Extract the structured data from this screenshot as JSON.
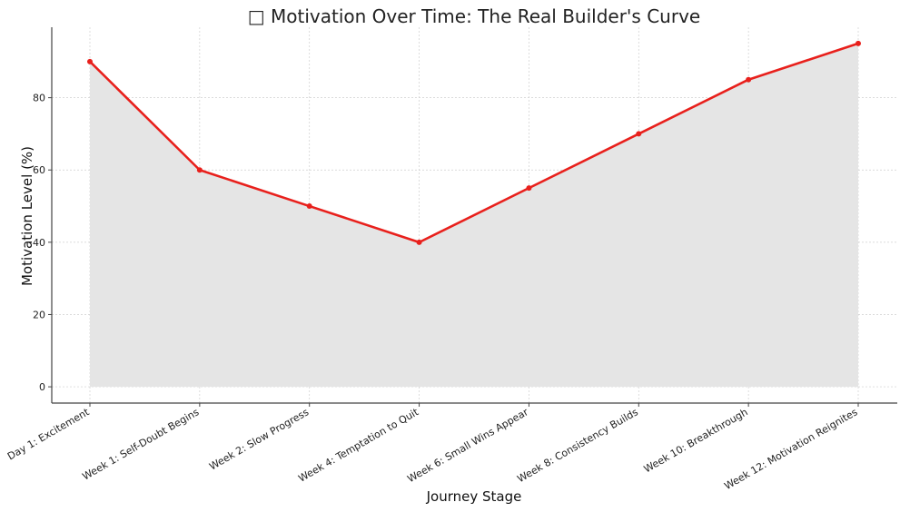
{
  "chart_data": {
    "type": "area",
    "title": "□ Motivation Over Time: The Real Builder's Curve",
    "xlabel": "Journey Stage",
    "ylabel": "Motivation Level (%)",
    "categories": [
      "Day 1: Excitement",
      "Week 1: Self-Doubt Begins",
      "Week 2: Slow Progress",
      "Week 4: Temptation to Quit",
      "Week 6: Small Wins Appear",
      "Week 8: Consistency Builds",
      "Week 10: Breakthrough",
      "Week 12: Motivation Reignites"
    ],
    "values": [
      90,
      60,
      50,
      40,
      55,
      70,
      85,
      95
    ],
    "ylim": [
      -4.5,
      99.5
    ],
    "yticks": [
      0,
      20,
      40,
      60,
      80
    ],
    "grid": true,
    "line_color": "#e8201c",
    "fill_color": "#e5e5e5"
  }
}
